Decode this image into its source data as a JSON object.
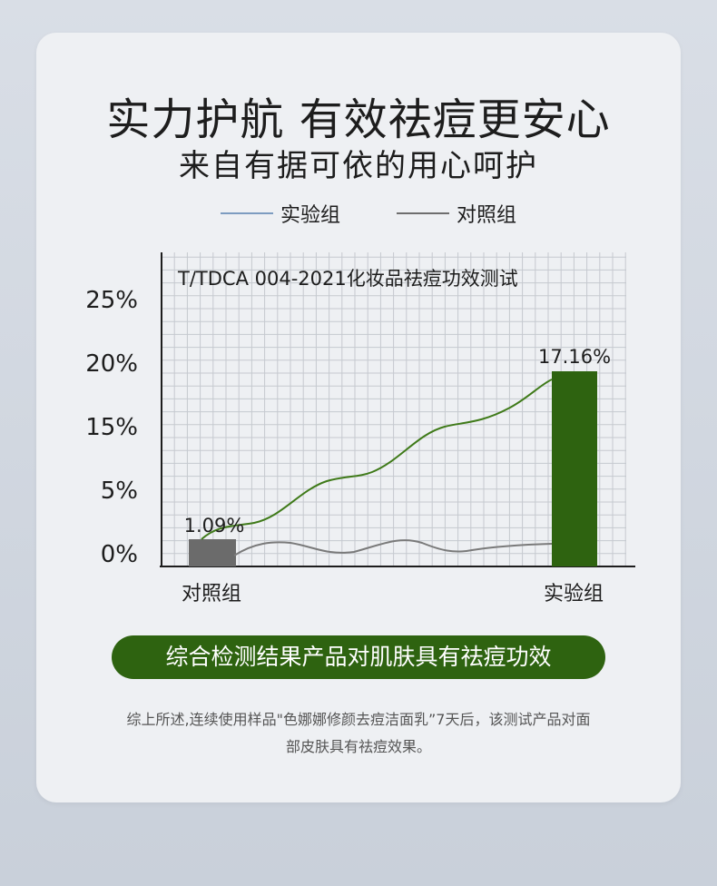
{
  "title": "实力护航 有效祛痘更安心",
  "subtitle": "来自有据可依的用心呵护",
  "legend": [
    {
      "label": "实验组",
      "color": "#7d9cc0"
    },
    {
      "label": "对照组",
      "color": "#6e6e6e"
    }
  ],
  "chart_data": {
    "type": "bar",
    "title": "T/TDCA 004-2021化妆品祛痘功效测试",
    "categories": [
      "对照组",
      "实验组"
    ],
    "values": [
      1.09,
      17.16
    ],
    "value_labels": [
      "1.09%",
      "17.16%"
    ],
    "bar_colors": [
      "#6b6b6b",
      "#2e6310"
    ],
    "y_ticks": [
      "0%",
      "5%",
      "15%",
      "20%",
      "25%"
    ],
    "grid": true,
    "colors": {
      "experiment_curve": "#3f7a19",
      "control_curve": "#7a7a7a",
      "grid": "#c5c9cf",
      "axis": "#1d1d1d"
    }
  },
  "conclusion": "综合检测结果产品对肌肤具有祛痘功效",
  "note_line1": "综上所述,连续使用样品\"色娜娜修颜去痘洁面乳”7天后，该测试产品对面",
  "note_line2": "部皮肤具有祛痘效果。"
}
